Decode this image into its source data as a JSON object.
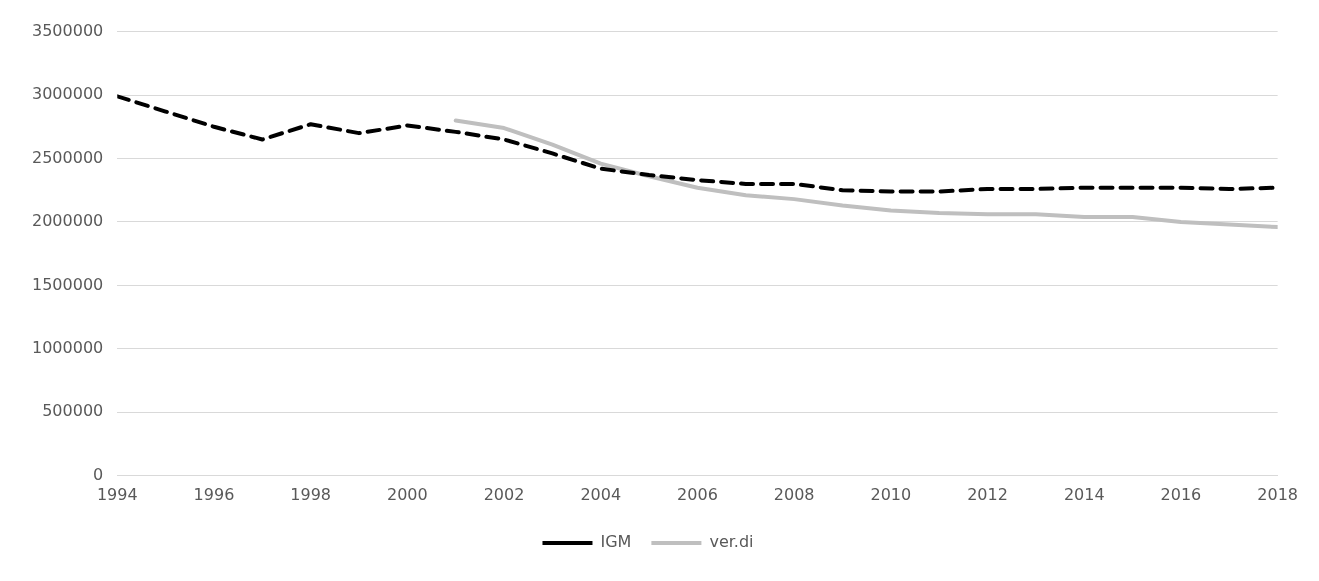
{
  "chart_data": {
    "type": "line",
    "x": [
      1994,
      1995,
      1996,
      1997,
      1998,
      1999,
      2000,
      2001,
      2002,
      2003,
      2004,
      2005,
      2006,
      2007,
      2008,
      2009,
      2010,
      2011,
      2012,
      2013,
      2014,
      2015,
      2016,
      2017,
      2018
    ],
    "series": [
      {
        "name": "IGM",
        "color": "#000000",
        "line_style": "dashed",
        "values": [
          2990000,
          2870000,
          2750000,
          2650000,
          2770000,
          2700000,
          2760000,
          2710000,
          2650000,
          2540000,
          2420000,
          2370000,
          2330000,
          2300000,
          2300000,
          2250000,
          2240000,
          2240000,
          2260000,
          2260000,
          2270000,
          2270000,
          2270000,
          2260000,
          2270000
        ]
      },
      {
        "name": "ver.di",
        "color": "#bfbfbf",
        "line_style": "solid",
        "values": [
          null,
          null,
          null,
          null,
          null,
          null,
          null,
          2800000,
          2740000,
          2610000,
          2460000,
          2360000,
          2270000,
          2210000,
          2180000,
          2130000,
          2090000,
          2070000,
          2060000,
          2060000,
          2040000,
          2040000,
          2000000,
          1980000,
          1960000
        ]
      }
    ],
    "xlim": [
      1994,
      2018
    ],
    "xticks": [
      1994,
      1996,
      1998,
      2000,
      2002,
      2004,
      2006,
      2008,
      2010,
      2012,
      2014,
      2016,
      2018
    ],
    "ylim": [
      0,
      3500000
    ],
    "yticks": [
      0,
      500000,
      1000000,
      1500000,
      2000000,
      2500000,
      3000000,
      3500000
    ],
    "grid": "y",
    "legend": "bottom",
    "marker": "none"
  }
}
